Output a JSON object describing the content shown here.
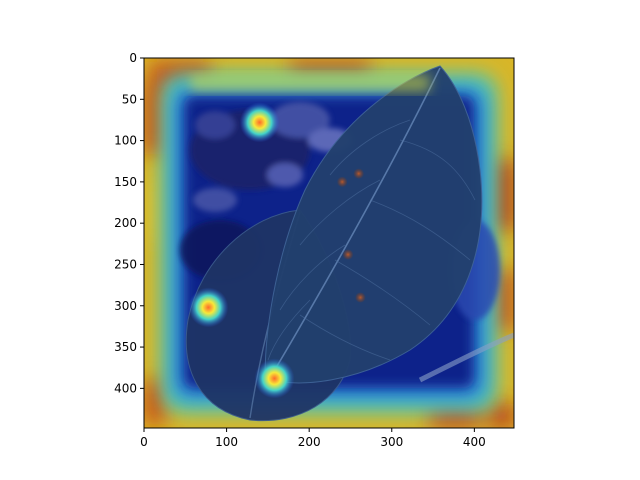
{
  "axes": {
    "x_ticks": [
      {
        "value": 0,
        "label": "0"
      },
      {
        "value": 100,
        "label": "100"
      },
      {
        "value": 200,
        "label": "200"
      },
      {
        "value": 300,
        "label": "300"
      },
      {
        "value": 400,
        "label": "400"
      }
    ],
    "y_ticks": [
      {
        "value": 0,
        "label": "0"
      },
      {
        "value": 50,
        "label": "50"
      },
      {
        "value": 100,
        "label": "100"
      },
      {
        "value": 150,
        "label": "150"
      },
      {
        "value": 200,
        "label": "200"
      },
      {
        "value": 250,
        "label": "250"
      },
      {
        "value": 300,
        "label": "300"
      },
      {
        "value": 350,
        "label": "350"
      },
      {
        "value": 400,
        "label": "400"
      }
    ],
    "xlim": [
      0,
      448
    ],
    "ylim": [
      448,
      0
    ]
  },
  "image": {
    "subject": "apple leaves with small rust spots",
    "overlay": "jet colormap heatmap, hot along the border, cold over the leaves",
    "spots": [
      {
        "x": 240,
        "y": 150
      },
      {
        "x": 260,
        "y": 140
      },
      {
        "x": 247,
        "y": 238
      },
      {
        "x": 262,
        "y": 290
      }
    ],
    "highlights": [
      {
        "x": 140,
        "y": 78
      },
      {
        "x": 78,
        "y": 302
      },
      {
        "x": 158,
        "y": 388
      }
    ]
  }
}
